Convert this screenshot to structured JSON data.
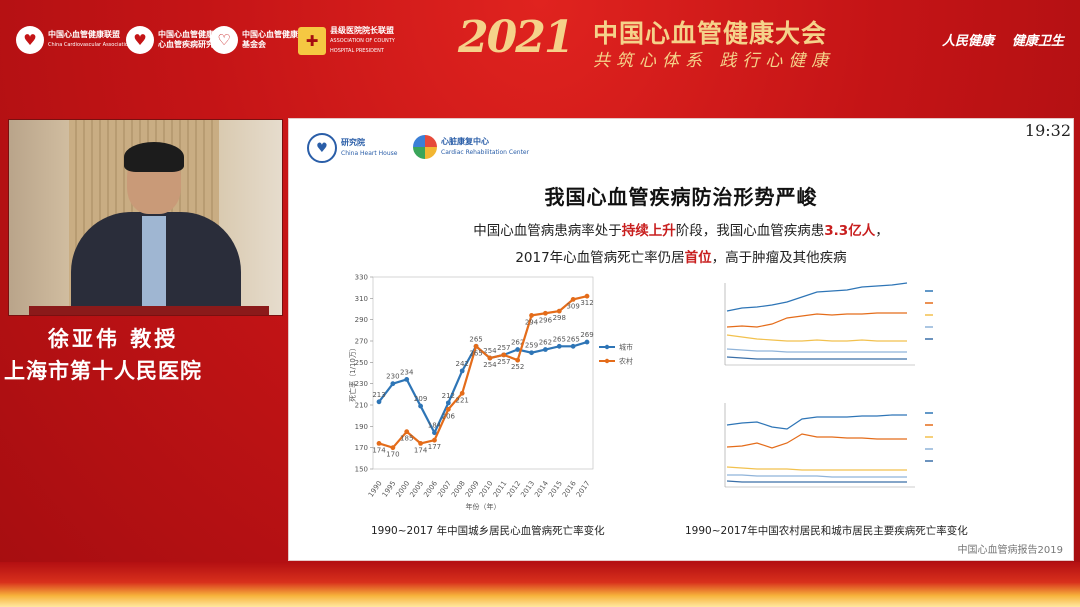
{
  "header": {
    "logos": [
      {
        "text": "中国心血管健康联盟",
        "sub": "China Cardiovascular Association",
        "icon": "heart-hands-icon"
      },
      {
        "text": "中国心血管健康联盟 心血管疾病研究院",
        "sub": "",
        "icon": "heart-icon"
      },
      {
        "text": "中国心血管健康联盟 基金会",
        "sub": "",
        "icon": "ribbon-heart-icon"
      },
      {
        "text": "县级医院院长联盟",
        "sub": "ASSOCIATION OF COUNTY HOSPITAL PRESIDENT",
        "icon": "hospital-icon"
      }
    ],
    "congress_year": "2021",
    "congress_title": "中国心血管健康大会",
    "congress_slogan": "共筑心体系 践行心健康",
    "media": [
      "人民健康",
      "健康卫生"
    ]
  },
  "speaker": {
    "name": "徐亚伟 教授",
    "org": "上海市第十人民医院"
  },
  "slide": {
    "clock": "19:32",
    "logo1": {
      "text": "研究院",
      "sub": "China Heart House"
    },
    "logo2": {
      "text": "心脏康复中心",
      "sub": "Cardiac Rehabilitation Center"
    },
    "title": "我国心血管疾病防治形势严峻",
    "line1": {
      "a": "中国心血管病患病率处于",
      "b": "持续上升",
      "c": "阶段，我国心血管疾病患",
      "d": "3.3亿人",
      "e": "，"
    },
    "line2": {
      "a": "2017年心血管病死亡率仍居",
      "b": "首位",
      "c": "，高于肿瘤及其他疾病"
    },
    "caption_left": "1990~2017 年中国城乡居民心血管病死亡率变化",
    "caption_right": "1990~2017年中国农村居民和城市居民主要疾病死亡率变化",
    "source": "中国心血管病报告2019"
  },
  "chart_data": [
    {
      "type": "line",
      "title": "",
      "ylabel": "死亡率（1/10万）",
      "xlabel": "年份（年）",
      "ylim": [
        150,
        330
      ],
      "yticks": [
        150,
        170,
        190,
        210,
        230,
        250,
        270,
        290,
        310,
        330
      ],
      "x": [
        "1990",
        "1995",
        "2000",
        "2005",
        "2006",
        "2007",
        "2008",
        "2009",
        "2010",
        "2011",
        "2012",
        "2013",
        "2014",
        "2015",
        "2016",
        "2017"
      ],
      "series": [
        {
          "name": "城市",
          "color": "#2e75b6",
          "values": [
            213,
            230,
            234,
            209,
            184,
            212,
            242,
            265,
            254,
            257,
            262,
            259,
            262,
            265,
            265,
            269
          ]
        },
        {
          "name": "农村",
          "color": "#e46c1a",
          "values": [
            174,
            170,
            185,
            174,
            177,
            206,
            221,
            265,
            254,
            257,
            252,
            294,
            296,
            298,
            309,
            312
          ]
        }
      ],
      "legend": "right"
    }
  ]
}
